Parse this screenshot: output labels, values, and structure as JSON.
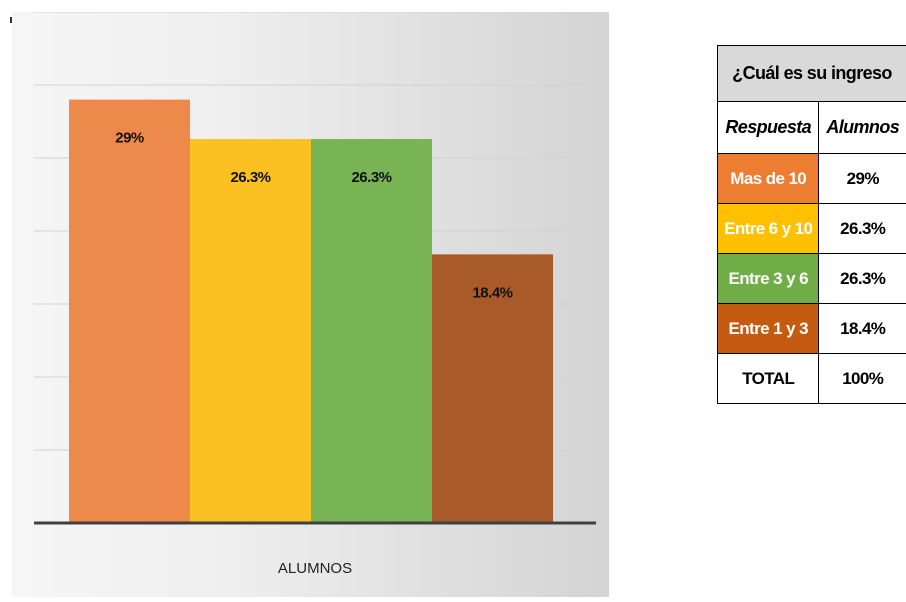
{
  "colors": {
    "mas_de_10": "#ed8a4b",
    "entre_6_y_10": "#fbc022",
    "entre_3_y_6": "#78b454",
    "entre_1_y_3": "#a85a28",
    "table_title_bg": "#d9d9d9",
    "table_entre_1_y_3": "#c55a11"
  },
  "chart_data": {
    "type": "bar",
    "categories": [
      "ALUMNOS"
    ],
    "series": [
      {
        "name": "Mas de 10",
        "values": [
          29
        ],
        "label": "29%",
        "color": "#ed8a4b"
      },
      {
        "name": "Entre 6 y 10",
        "values": [
          26.3
        ],
        "label": "26.3%",
        "color": "#fbc022"
      },
      {
        "name": "Entre 3 y 6",
        "values": [
          26.3
        ],
        "label": "26.3%",
        "color": "#78b454"
      },
      {
        "name": "Entre 1 y 3",
        "values": [
          18.4
        ],
        "label": "18.4%",
        "color": "#a85a28"
      }
    ],
    "xlabel": "ALUMNOS",
    "ylabel": "",
    "ylim": [
      0,
      35
    ],
    "grid": true,
    "legend": "none"
  },
  "table": {
    "title": "¿Cuál es su ingreso",
    "headers": [
      "Respuesta",
      "Alumnos"
    ],
    "rows": [
      {
        "respuesta": "Mas de 10",
        "alumnos": "29%",
        "color": "#ed7d31"
      },
      {
        "respuesta": "Entre 6 y 10",
        "alumnos": "26.3%",
        "color": "#ffc000"
      },
      {
        "respuesta": "Entre 3 y 6",
        "alumnos": "26.3%",
        "color": "#70ad47"
      },
      {
        "respuesta": "Entre 1 y 3",
        "alumnos": "18.4%",
        "color": "#c55a11"
      }
    ],
    "total": {
      "respuesta": "TOTAL",
      "alumnos": "100%"
    }
  }
}
